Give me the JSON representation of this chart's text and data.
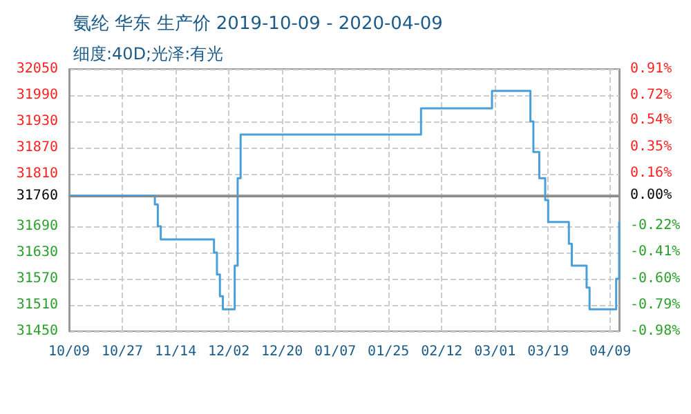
{
  "chart_data": {
    "type": "step",
    "title": "氨纶 华东 生产价 2019-10-09 - 2020-04-09",
    "subtitle": "细度:40D;光泽:有光",
    "x": [
      "2019-10-09",
      "2019-11-07",
      "2019-11-08",
      "2019-11-09",
      "2019-11-27",
      "2019-11-28",
      "2019-11-29",
      "2019-11-30",
      "2019-12-04",
      "2019-12-05",
      "2019-12-06",
      "2020-02-05",
      "2020-02-29",
      "2020-03-13",
      "2020-03-14",
      "2020-03-16",
      "2020-03-18",
      "2020-03-19",
      "2020-03-26",
      "2020-03-27",
      "2020-04-01",
      "2020-04-02",
      "2020-04-11",
      "2020-04-12"
    ],
    "series": [
      {
        "color": "#4a9fd8",
        "values": [
          31760,
          31740,
          31690,
          31660,
          31630,
          31580,
          31530,
          31500,
          31600,
          31800,
          31900,
          31960,
          32000,
          31930,
          31860,
          31800,
          31750,
          31700,
          31650,
          31600,
          31550,
          31500,
          31570,
          31700
        ]
      }
    ],
    "xlim": [
      "2019-10-09",
      "2020-04-12"
    ],
    "xticks": [
      {
        "value": "2019-10-09",
        "label": "10/09"
      },
      {
        "value": "2019-10-27",
        "label": "10/27"
      },
      {
        "value": "2019-11-14",
        "label": "11/14"
      },
      {
        "value": "2019-12-02",
        "label": "12/02"
      },
      {
        "value": "2019-12-20",
        "label": "12/20"
      },
      {
        "value": "2020-01-07",
        "label": "01/07"
      },
      {
        "value": "2020-01-25",
        "label": "01/25"
      },
      {
        "value": "2020-02-12",
        "label": "02/12"
      },
      {
        "value": "2020-03-01",
        "label": "03/01"
      },
      {
        "value": "2020-03-19",
        "label": "03/19"
      },
      {
        "value": "2020-04-09",
        "label": "04/09"
      }
    ],
    "ylim": [
      31450,
      32050
    ],
    "yticks": [
      31450,
      31510,
      31570,
      31630,
      31690,
      31760,
      31810,
      31870,
      31930,
      31990,
      32050
    ],
    "y2lim": [
      -0.98,
      0.91
    ],
    "y2ticks": [
      {
        "value": -0.98,
        "label": "-0.98%"
      },
      {
        "value": -0.79,
        "label": "-0.79%"
      },
      {
        "value": -0.6,
        "label": "-0.60%"
      },
      {
        "value": -0.41,
        "label": "-0.41%"
      },
      {
        "value": -0.22,
        "label": "-0.22%"
      },
      {
        "value": 0,
        "label": "0.00%"
      },
      {
        "value": 0.16,
        "label": "0.16%"
      },
      {
        "value": 0.35,
        "label": "0.35%"
      },
      {
        "value": 0.54,
        "label": "0.54%"
      },
      {
        "value": 0.72,
        "label": "0.72%"
      },
      {
        "value": 0.91,
        "label": "0.91%"
      }
    ],
    "ref_lines": [
      {
        "axis": "y",
        "value": 31760,
        "color": "#888888"
      }
    ],
    "grid": true,
    "marker": "none",
    "line_style": "solid"
  }
}
